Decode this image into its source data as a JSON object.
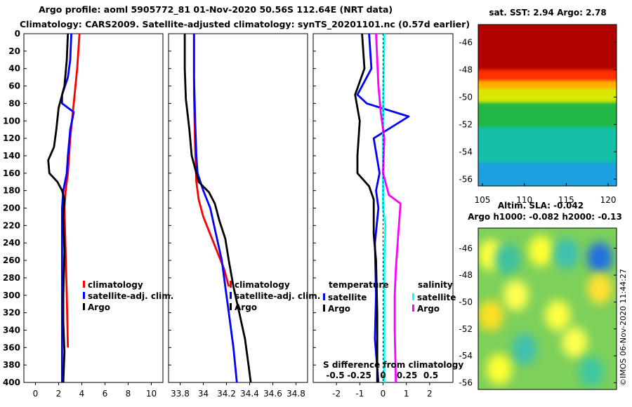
{
  "title": {
    "line1": "Argo profile: aoml 5905772_81 01-Nov-2020 50.56S 112.64E (NRT data)",
    "line2": "Climatology: CARS2009. Satellite-adjusted climatology: synTS_20201101.nc (0.57d earlier)"
  },
  "credit": "©IMOS 06-Nov-2020 11:44:27",
  "colors": {
    "climatology": "#ff0000",
    "satellite": "#0000ff",
    "argo": "#000000",
    "satellite_salinity": "#00ffff",
    "argo_salinity": "#ff00ff"
  },
  "chart_data": [
    {
      "id": "temperature",
      "type": "line",
      "xlim": [
        -1,
        11
      ],
      "ylim": [
        0,
        400
      ],
      "xticks": [
        "0",
        "2",
        "4",
        "6",
        "8",
        "10"
      ],
      "yticks": [
        "0",
        "20",
        "40",
        "60",
        "80",
        "100",
        "120",
        "140",
        "160",
        "180",
        "200",
        "220",
        "240",
        "260",
        "280",
        "300",
        "320",
        "340",
        "360",
        "380",
        "400"
      ],
      "legend": [
        "climatology",
        "satellite-adj. clim.",
        "Argo"
      ],
      "series": [
        {
          "name": "climatology",
          "color": "#ff0000",
          "points": [
            [
              3.8,
              0
            ],
            [
              3.6,
              40
            ],
            [
              3.3,
              80
            ],
            [
              3.0,
              120
            ],
            [
              2.8,
              160
            ],
            [
              2.6,
              180
            ],
            [
              2.5,
              200
            ],
            [
              2.6,
              250
            ],
            [
              2.7,
              300
            ],
            [
              2.8,
              360
            ]
          ]
        },
        {
          "name": "satellite-adj. clim.",
          "color": "#0000ff",
          "points": [
            [
              3.1,
              0
            ],
            [
              3.0,
              30
            ],
            [
              2.8,
              50
            ],
            [
              2.3,
              70
            ],
            [
              2.3,
              80
            ],
            [
              3.3,
              90
            ],
            [
              3.0,
              110
            ],
            [
              2.8,
              140
            ],
            [
              2.7,
              160
            ],
            [
              2.4,
              180
            ],
            [
              2.3,
              200
            ],
            [
              2.3,
              260
            ],
            [
              2.3,
              320
            ],
            [
              2.3,
              400
            ]
          ]
        },
        {
          "name": "Argo",
          "color": "#000000",
          "points": [
            [
              2.8,
              0
            ],
            [
              2.7,
              30
            ],
            [
              2.5,
              60
            ],
            [
              2.0,
              85
            ],
            [
              1.8,
              110
            ],
            [
              1.6,
              130
            ],
            [
              1.1,
              145
            ],
            [
              1.2,
              160
            ],
            [
              1.9,
              170
            ],
            [
              2.3,
              180
            ],
            [
              2.5,
              190
            ],
            [
              2.4,
              210
            ],
            [
              2.5,
              250
            ],
            [
              2.4,
              300
            ],
            [
              2.4,
              330
            ],
            [
              2.5,
              365
            ],
            [
              2.4,
              400
            ]
          ]
        }
      ]
    },
    {
      "id": "salinity",
      "type": "line",
      "xlim": [
        33.7,
        34.9
      ],
      "ylim": [
        0,
        400
      ],
      "xticks": [
        "33.8",
        "34",
        "34.2",
        "34.4",
        "34.6",
        "34.8"
      ],
      "legend": [
        "climatology",
        "satellite-adj. clim.",
        "Argo"
      ],
      "series": [
        {
          "name": "climatology",
          "color": "#ff0000",
          "points": [
            [
              33.92,
              0
            ],
            [
              33.92,
              70
            ],
            [
              33.93,
              130
            ],
            [
              33.94,
              170
            ],
            [
              33.96,
              190
            ],
            [
              34.0,
              210
            ],
            [
              34.06,
              230
            ],
            [
              34.12,
              250
            ],
            [
              34.18,
              270
            ],
            [
              34.22,
              290
            ]
          ]
        },
        {
          "name": "satellite-adj. clim.",
          "color": "#0000ff",
          "points": [
            [
              33.92,
              0
            ],
            [
              33.92,
              50
            ],
            [
              33.93,
              100
            ],
            [
              33.94,
              140
            ],
            [
              33.95,
              160
            ],
            [
              34.0,
              180
            ],
            [
              34.06,
              200
            ],
            [
              34.11,
              230
            ],
            [
              34.16,
              260
            ],
            [
              34.19,
              290
            ],
            [
              34.22,
              320
            ],
            [
              34.26,
              360
            ],
            [
              34.29,
              400
            ]
          ]
        },
        {
          "name": "Argo",
          "color": "#000000",
          "points": [
            [
              33.84,
              0
            ],
            [
              33.84,
              40
            ],
            [
              33.85,
              75
            ],
            [
              33.88,
              110
            ],
            [
              33.9,
              140
            ],
            [
              33.96,
              170
            ],
            [
              34.05,
              182
            ],
            [
              34.1,
              195
            ],
            [
              34.14,
              215
            ],
            [
              34.19,
              235
            ],
            [
              34.22,
              260
            ],
            [
              34.26,
              290
            ],
            [
              34.31,
              320
            ],
            [
              34.36,
              350
            ],
            [
              34.39,
              380
            ],
            [
              34.41,
              400
            ]
          ]
        }
      ]
    },
    {
      "id": "difference",
      "type": "line",
      "xlim": [
        -3,
        3
      ],
      "ylim": [
        0,
        400
      ],
      "xticks": [
        "-2",
        "-1",
        "0",
        "1",
        "2"
      ],
      "extra_ticks": [
        "-0.5",
        "-0.25",
        "0",
        "0.25",
        "0.5"
      ],
      "xlabel": "S difference from climatology",
      "legend_temperature": {
        "header": "temperature",
        "items": [
          "satellite",
          "Argo"
        ]
      },
      "legend_salinity": {
        "header": "salinity",
        "items": [
          "satellite",
          "Argo"
        ]
      },
      "series": [
        {
          "name": "temperature satellite",
          "color": "#0000ff",
          "points": [
            [
              -0.6,
              0
            ],
            [
              -0.5,
              40
            ],
            [
              -1.1,
              70
            ],
            [
              -0.7,
              80
            ],
            [
              1.1,
              95
            ],
            [
              -0.4,
              120
            ],
            [
              -0.15,
              160
            ],
            [
              -0.3,
              180
            ],
            [
              -0.2,
              200
            ],
            [
              -0.35,
              240
            ],
            [
              -0.3,
              300
            ],
            [
              -0.35,
              350
            ],
            [
              -0.2,
              400
            ]
          ]
        },
        {
          "name": "temperature Argo",
          "color": "#000000",
          "points": [
            [
              -0.9,
              0
            ],
            [
              -0.8,
              40
            ],
            [
              -1.2,
              70
            ],
            [
              -1.0,
              100
            ],
            [
              -1.1,
              140
            ],
            [
              -1.1,
              160
            ],
            [
              -0.6,
              175
            ],
            [
              -0.4,
              190
            ],
            [
              -0.4,
              230
            ],
            [
              -0.3,
              260
            ],
            [
              -0.25,
              320
            ],
            [
              -0.25,
              400
            ]
          ]
        },
        {
          "name": "salinity satellite",
          "color": "#00ffff",
          "points": [
            [
              0.05,
              0
            ],
            [
              0.0,
              100
            ],
            [
              0.0,
              200
            ],
            [
              0.1,
              220
            ],
            [
              0.05,
              260
            ],
            [
              0.05,
              300
            ],
            [
              0.05,
              400
            ]
          ]
        },
        {
          "name": "salinity Argo",
          "color": "#ff00ff",
          "points": [
            [
              -0.3,
              0
            ],
            [
              -0.2,
              60
            ],
            [
              -0.1,
              90
            ],
            [
              0.05,
              120
            ],
            [
              0.0,
              160
            ],
            [
              0.25,
              185
            ],
            [
              0.75,
              195
            ],
            [
              0.65,
              230
            ],
            [
              0.55,
              270
            ],
            [
              0.5,
              300
            ],
            [
              0.5,
              340
            ],
            [
              0.55,
              400
            ]
          ]
        }
      ]
    },
    {
      "id": "sst_map",
      "type": "heatmap",
      "title": "sat. SST: 2.94 Argo: 2.78",
      "xlim": [
        104.5,
        121
      ],
      "ylim": [
        -56.5,
        -44.7
      ],
      "xticks": [
        "105",
        "110",
        "115",
        "120"
      ],
      "yticks": [
        "-46",
        "-48",
        "-50",
        "-52",
        "-54",
        "-56"
      ],
      "zones": [
        {
          "lat_max": -44.7,
          "lat_min": -48.2,
          "color": "#b00000"
        },
        {
          "lat_max": -48.2,
          "lat_min": -49.0,
          "color": "#ff3000"
        },
        {
          "lat_max": -49.0,
          "lat_min": -49.6,
          "color": "#ffb000"
        },
        {
          "lat_max": -49.6,
          "lat_min": -50.6,
          "color": "#d8e800"
        },
        {
          "lat_max": -50.6,
          "lat_min": -52.4,
          "color": "#22b844"
        },
        {
          "lat_max": -52.4,
          "lat_min": -55.0,
          "color": "#14c0a8"
        },
        {
          "lat_max": -55.0,
          "lat_min": -56.5,
          "color": "#1aa0e0"
        }
      ]
    },
    {
      "id": "sla_map",
      "type": "heatmap",
      "title": "Altim. SLA: -0.042",
      "subtitle": "Argo h1000: -0.082 h2000: -0.13",
      "ylim": [
        -56.5,
        -44.5
      ],
      "yticks": [
        "-46",
        "-48",
        "-50",
        "-52",
        "-54",
        "-56"
      ],
      "background": "#7dd05a",
      "blobs": [
        {
          "lon": 106,
          "lat": -46.5,
          "color": "#ffff40"
        },
        {
          "lon": 112,
          "lat": -46.2,
          "color": "#ffff30"
        },
        {
          "lon": 108,
          "lat": -46.8,
          "color": "#3dc0a0"
        },
        {
          "lon": 115,
          "lat": -46.4,
          "color": "#40c0b0"
        },
        {
          "lon": 119,
          "lat": -46.7,
          "color": "#2070e0"
        },
        {
          "lon": 109,
          "lat": -49.5,
          "color": "#ffff50"
        },
        {
          "lon": 106,
          "lat": -51.0,
          "color": "#ffe020"
        },
        {
          "lon": 114,
          "lat": -51.0,
          "color": "#ffff40"
        },
        {
          "lon": 119,
          "lat": -49.0,
          "color": "#ffe030"
        },
        {
          "lon": 110,
          "lat": -53.5,
          "color": "#40c0b0"
        },
        {
          "lon": 116,
          "lat": -53.0,
          "color": "#ffff50"
        },
        {
          "lon": 107,
          "lat": -55.0,
          "color": "#ffff30"
        },
        {
          "lon": 118,
          "lat": -55.2,
          "color": "#40c8a0"
        }
      ]
    }
  ]
}
